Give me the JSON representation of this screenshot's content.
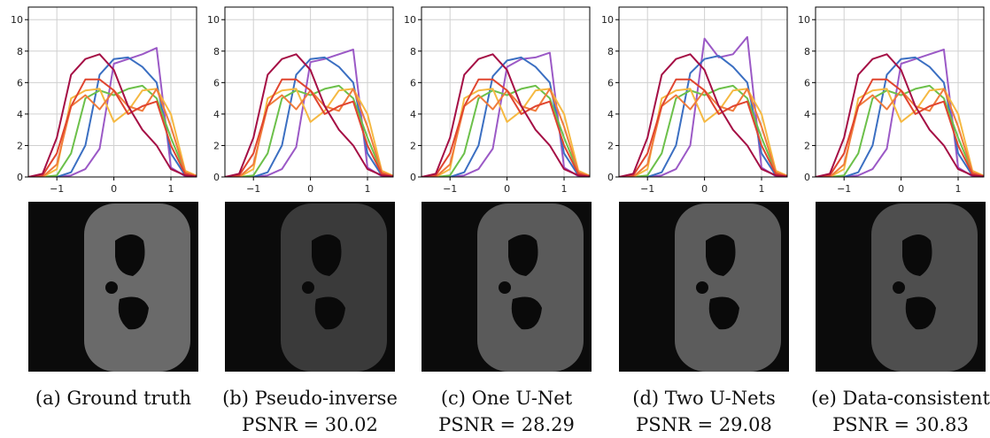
{
  "panels": [
    {
      "caption": "(a) Ground truth",
      "chart_data": {
        "type": "line",
        "x": [
          -1.5,
          -1.25,
          -1,
          -0.75,
          -0.5,
          -0.25,
          0,
          0.25,
          0.5,
          0.75,
          1,
          1.25,
          1.5
        ],
        "xlim": [
          -1.5,
          1.45
        ],
        "ylim": [
          0,
          10.8
        ],
        "xticks": [
          {
            "value": -1,
            "label": "−1"
          },
          0,
          1
        ],
        "yticks": [
          0,
          2,
          4,
          6,
          8,
          10
        ],
        "grid": true,
        "series": [
          {
            "color": "#9b59c6",
            "values": [
              0,
              0,
              0,
              0.1,
              0.5,
              1.8,
              7.2,
              7.5,
              7.8,
              8.2,
              0.6,
              0.05,
              0
            ]
          },
          {
            "color": "#3b6fc2",
            "values": [
              0,
              0,
              0,
              0.3,
              2,
              6.5,
              7.5,
              7.6,
              7,
              6,
              1.5,
              0.1,
              0
            ]
          },
          {
            "color": "#6cc04a",
            "values": [
              0,
              0,
              0.1,
              1.5,
              5,
              5.5,
              5.2,
              5.6,
              5.8,
              5,
              2.5,
              0.3,
              0
            ]
          },
          {
            "color": "#f5b942",
            "values": [
              0,
              0,
              0.5,
              5,
              5.5,
              5.6,
              3.5,
              4.2,
              5.5,
              5.6,
              4,
              0.4,
              0
            ]
          },
          {
            "color": "#f07c3c",
            "values": [
              0,
              0,
              0.8,
              4.5,
              5.2,
              4.3,
              5.5,
              4.5,
              4.2,
              5.6,
              3.2,
              0.3,
              0
            ]
          },
          {
            "color": "#e0452f",
            "values": [
              0,
              0.1,
              1.5,
              4.5,
              6.2,
              6.2,
              5.5,
              4,
              4.5,
              4.8,
              2,
              0.2,
              0
            ]
          },
          {
            "color": "#a50f45",
            "values": [
              0,
              0.2,
              2.5,
              6.5,
              7.5,
              7.8,
              6.8,
              4.5,
              3,
              2,
              0.5,
              0.1,
              0
            ]
          }
        ]
      }
    },
    {
      "caption": "(b) Pseudo-inverse",
      "psnr": "PSNR = 30.02",
      "chart_data": {
        "type": "line",
        "x": [
          -1.5,
          -1.25,
          -1,
          -0.75,
          -0.5,
          -0.25,
          0,
          0.25,
          0.5,
          0.75,
          1,
          1.25,
          1.5
        ],
        "xlim": [
          -1.5,
          1.45
        ],
        "ylim": [
          0,
          10.8
        ],
        "xticks": [
          {
            "value": -1,
            "label": "−1"
          },
          0,
          1
        ],
        "yticks": [
          0,
          2,
          4,
          6,
          8,
          10
        ],
        "grid": true,
        "series": [
          {
            "color": "#9b59c6",
            "values": [
              0,
              0,
              0,
              0.1,
              0.5,
              1.9,
              7.3,
              7.5,
              7.8,
              8.1,
              0.6,
              0.05,
              0
            ]
          },
          {
            "color": "#3b6fc2",
            "values": [
              0,
              0,
              0,
              0.3,
              2,
              6.5,
              7.5,
              7.6,
              7,
              6,
              1.5,
              0.1,
              0
            ]
          },
          {
            "color": "#6cc04a",
            "values": [
              0,
              0,
              0.1,
              1.5,
              5,
              5.5,
              5.2,
              5.6,
              5.8,
              5,
              2.5,
              0.3,
              0
            ]
          },
          {
            "color": "#f5b942",
            "values": [
              0,
              0,
              0.5,
              5,
              5.5,
              5.6,
              3.5,
              4.2,
              5.5,
              5.6,
              4,
              0.4,
              0
            ]
          },
          {
            "color": "#f07c3c",
            "values": [
              0,
              0,
              0.8,
              4.5,
              5.2,
              4.3,
              5.5,
              4.5,
              4.2,
              5.6,
              3.2,
              0.3,
              0
            ]
          },
          {
            "color": "#e0452f",
            "values": [
              0,
              0.1,
              1.5,
              4.5,
              6.2,
              6.2,
              5.5,
              4,
              4.5,
              4.8,
              2,
              0.2,
              0
            ]
          },
          {
            "color": "#a50f45",
            "values": [
              0,
              0.2,
              2.5,
              6.5,
              7.5,
              7.8,
              6.8,
              4.5,
              3,
              2,
              0.5,
              0.1,
              0
            ]
          }
        ]
      }
    },
    {
      "caption": "(c) One U-Net",
      "psnr": "PSNR = 28.29",
      "chart_data": {
        "type": "line",
        "x": [
          -1.5,
          -1.25,
          -1,
          -0.75,
          -0.5,
          -0.25,
          0,
          0.25,
          0.5,
          0.75,
          1,
          1.25,
          1.5
        ],
        "xlim": [
          -1.5,
          1.45
        ],
        "ylim": [
          0,
          10.8
        ],
        "xticks": [
          {
            "value": -1,
            "label": "−1"
          },
          0,
          1
        ],
        "yticks": [
          0,
          2,
          4,
          6,
          8,
          10
        ],
        "grid": true,
        "series": [
          {
            "color": "#9b59c6",
            "values": [
              0,
              0,
              0,
              0.1,
              0.5,
              1.8,
              7.0,
              7.5,
              7.6,
              7.9,
              0.6,
              0.05,
              0
            ]
          },
          {
            "color": "#3b6fc2",
            "values": [
              0,
              0,
              0,
              0.3,
              2,
              6.4,
              7.4,
              7.6,
              7,
              6,
              1.5,
              0.1,
              0
            ]
          },
          {
            "color": "#6cc04a",
            "values": [
              0,
              0,
              0.1,
              1.5,
              5,
              5.5,
              5.2,
              5.6,
              5.8,
              5,
              2.5,
              0.3,
              0
            ]
          },
          {
            "color": "#f5b942",
            "values": [
              0,
              0,
              0.5,
              5,
              5.5,
              5.6,
              3.5,
              4.2,
              5.5,
              5.6,
              4,
              0.4,
              0
            ]
          },
          {
            "color": "#f07c3c",
            "values": [
              0,
              0,
              0.8,
              4.5,
              5.2,
              4.3,
              5.5,
              4.5,
              4.2,
              5.6,
              3.2,
              0.3,
              0
            ]
          },
          {
            "color": "#e0452f",
            "values": [
              0,
              0.1,
              1.5,
              4.5,
              6.2,
              6.2,
              5.5,
              4,
              4.5,
              4.8,
              2,
              0.2,
              0
            ]
          },
          {
            "color": "#a50f45",
            "values": [
              0,
              0.2,
              2.5,
              6.5,
              7.5,
              7.8,
              6.8,
              4.5,
              3,
              2,
              0.5,
              0.1,
              0
            ]
          }
        ]
      }
    },
    {
      "caption": "(d) Two U-Nets",
      "psnr": "PSNR = 29.08",
      "chart_data": {
        "type": "line",
        "x": [
          -1.5,
          -1.25,
          -1,
          -0.75,
          -0.5,
          -0.25,
          0,
          0.25,
          0.5,
          0.75,
          1,
          1.25,
          1.5
        ],
        "xlim": [
          -1.5,
          1.45
        ],
        "ylim": [
          0,
          10.8
        ],
        "xticks": [
          {
            "value": -1,
            "label": "−1"
          },
          0,
          1
        ],
        "yticks": [
          0,
          2,
          4,
          6,
          8,
          10
        ],
        "grid": true,
        "series": [
          {
            "color": "#9b59c6",
            "values": [
              0,
              0,
              0,
              0.1,
              0.5,
              2,
              8.8,
              7.6,
              7.8,
              8.9,
              0.6,
              0.05,
              0
            ]
          },
          {
            "color": "#3b6fc2",
            "values": [
              0,
              0,
              0,
              0.3,
              2,
              6.6,
              7.5,
              7.7,
              7,
              6,
              1.5,
              0.1,
              0
            ]
          },
          {
            "color": "#6cc04a",
            "values": [
              0,
              0,
              0.1,
              1.5,
              5,
              5.5,
              5.2,
              5.6,
              5.8,
              5,
              2.5,
              0.3,
              0
            ]
          },
          {
            "color": "#f5b942",
            "values": [
              0,
              0,
              0.5,
              5,
              5.5,
              5.6,
              3.5,
              4.2,
              5.5,
              5.6,
              4,
              0.4,
              0
            ]
          },
          {
            "color": "#f07c3c",
            "values": [
              0,
              0,
              0.8,
              4.5,
              5.2,
              4.3,
              5.5,
              4.5,
              4.2,
              5.6,
              3.2,
              0.3,
              0
            ]
          },
          {
            "color": "#e0452f",
            "values": [
              0,
              0.1,
              1.5,
              4.5,
              6.2,
              6.2,
              5.5,
              4,
              4.5,
              4.8,
              2,
              0.2,
              0
            ]
          },
          {
            "color": "#a50f45",
            "values": [
              0,
              0.2,
              2.5,
              6.5,
              7.5,
              7.8,
              6.8,
              4.5,
              3,
              2,
              0.5,
              0.1,
              0
            ]
          }
        ]
      }
    },
    {
      "caption": "(e) Data-consistent",
      "psnr": "PSNR = 30.83",
      "chart_data": {
        "type": "line",
        "x": [
          -1.5,
          -1.25,
          -1,
          -0.75,
          -0.5,
          -0.25,
          0,
          0.25,
          0.5,
          0.75,
          1,
          1.25,
          1.5
        ],
        "xlim": [
          -1.5,
          1.45
        ],
        "ylim": [
          0,
          10.8
        ],
        "xticks": [
          {
            "value": -1,
            "label": "−1"
          },
          0,
          1
        ],
        "yticks": [
          0,
          2,
          4,
          6,
          8,
          10
        ],
        "grid": true,
        "series": [
          {
            "color": "#9b59c6",
            "values": [
              0,
              0,
              0,
              0.1,
              0.5,
              1.8,
              7.2,
              7.5,
              7.8,
              8.1,
              0.6,
              0.05,
              0
            ]
          },
          {
            "color": "#3b6fc2",
            "values": [
              0,
              0,
              0,
              0.3,
              2,
              6.5,
              7.5,
              7.6,
              7,
              6,
              1.5,
              0.1,
              0
            ]
          },
          {
            "color": "#6cc04a",
            "values": [
              0,
              0,
              0.1,
              1.5,
              5,
              5.5,
              5.2,
              5.6,
              5.8,
              5,
              2.5,
              0.3,
              0
            ]
          },
          {
            "color": "#f5b942",
            "values": [
              0,
              0,
              0.5,
              5,
              5.5,
              5.6,
              3.5,
              4.2,
              5.5,
              5.6,
              4,
              0.4,
              0
            ]
          },
          {
            "color": "#f07c3c",
            "values": [
              0,
              0,
              0.8,
              4.5,
              5.2,
              4.3,
              5.5,
              4.5,
              4.2,
              5.6,
              3.2,
              0.3,
              0
            ]
          },
          {
            "color": "#e0452f",
            "values": [
              0,
              0.1,
              1.5,
              4.5,
              6.2,
              6.2,
              5.5,
              4,
              4.5,
              4.8,
              2,
              0.2,
              0
            ]
          },
          {
            "color": "#a50f45",
            "values": [
              0,
              0.2,
              2.5,
              6.5,
              7.5,
              7.8,
              6.8,
              4.5,
              3,
              2,
              0.5,
              0.1,
              0
            ]
          }
        ]
      }
    }
  ]
}
